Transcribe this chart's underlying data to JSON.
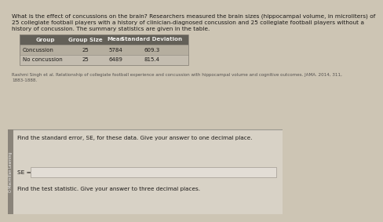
{
  "title_line1": "What is the effect of concussions on the brain? Researchers measured the brain sizes (hippocampal volume, in microliters) of",
  "title_line2": "25 collegiate football players with a history of clinician-diagnosed concussion and 25 collegiate football players without a",
  "title_line3": "history of concussion. The summary statistics are given in the table.",
  "table_headers": [
    "Group",
    "Group Size",
    "Mean",
    "Standard Deviation"
  ],
  "table_rows": [
    [
      "Concussion",
      "25",
      "5784",
      "609.3"
    ],
    [
      "No concussion",
      "25",
      "6489",
      "815.4"
    ]
  ],
  "citation_line1": "Rashmi Singh et al. Relationship of collegiate football experience and concussion with hippocampal volume and cognitive outcomes. JAMA. 2014, 311,",
  "citation_line2": "1883-1888.",
  "question1": "Find the standard error, SE, for these data. Give your answer to one decimal place.",
  "se_label": "SE =",
  "question2": "Find the test statistic. Give your answer to three decimal places.",
  "watermark": "O Macmillan Learning",
  "bg_top_color": "#cdc5b4",
  "bg_bottom_color": "#d8d2c6",
  "table_header_bg": "#636058",
  "table_row1_bg": "#b5ae9f",
  "table_row2_bg": "#c4bdb0",
  "table_border_color": "#8a847a",
  "input_box_bg": "#e2ddd5",
  "input_box_border": "#a09a92",
  "divider_color": "#999890",
  "left_bar_color": "#8a847a",
  "text_dark": "#1c1a18",
  "text_light": "#eeece8",
  "text_gray": "#555250",
  "title_fs": 5.3,
  "table_header_fs": 5.1,
  "table_body_fs": 5.0,
  "citation_fs": 4.1,
  "question_fs": 5.2,
  "se_fs": 5.3,
  "watermark_fs": 3.4
}
